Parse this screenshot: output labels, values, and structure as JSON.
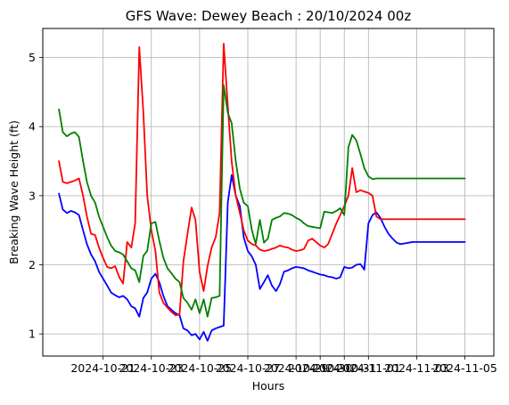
{
  "chart_data": {
    "type": "line",
    "title": "GFS Wave: Dewey Beach : 20/10/2024 00z",
    "xlabel": "Hours",
    "ylabel": "Breaking Wave Height (ft)",
    "grid": true,
    "xlim": [
      -1.5,
      17.2
    ],
    "ylim": [
      0.68,
      5.42
    ],
    "xticks": [
      {
        "x": 1,
        "label": "2024-10-21"
      },
      {
        "x": 3,
        "label": "2024-10-23"
      },
      {
        "x": 5,
        "label": "2024-10-25"
      },
      {
        "x": 7,
        "label": "2024-10-27"
      },
      {
        "x": 9,
        "label": "2024-10-29"
      },
      {
        "x": 10,
        "label": "2024-10-30"
      },
      {
        "x": 11,
        "label": "2024-10-31"
      },
      {
        "x": 12,
        "label": "2024-11-01"
      },
      {
        "x": 14,
        "label": "2024-11-03"
      },
      {
        "x": 16,
        "label": "2024-11-05"
      }
    ],
    "yticks": [
      1,
      2,
      3,
      4,
      5
    ],
    "series": [
      {
        "color": "#0000ff",
        "x": [
          -0.83,
          -0.67,
          -0.5,
          -0.33,
          -0.17,
          0.0,
          0.17,
          0.33,
          0.5,
          0.67,
          0.83,
          1.0,
          1.17,
          1.33,
          1.5,
          1.67,
          1.83,
          2.0,
          2.17,
          2.33,
          2.5,
          2.67,
          2.83,
          3.0,
          3.17,
          3.33,
          3.5,
          3.67,
          3.83,
          4.0,
          4.17,
          4.33,
          4.5,
          4.67,
          4.83,
          5.0,
          5.17,
          5.33,
          5.5,
          5.67,
          5.83,
          6.0,
          6.17,
          6.33,
          6.5,
          6.67,
          6.83,
          7.0,
          7.17,
          7.33,
          7.5,
          7.67,
          7.83,
          8.0,
          8.17,
          8.33,
          8.5,
          8.67,
          8.83,
          9.0,
          9.17,
          9.33,
          9.5,
          9.67,
          9.83,
          10.0,
          10.17,
          10.33,
          10.5,
          10.67,
          10.83,
          11.0,
          11.17,
          11.33,
          11.5,
          11.67,
          11.83,
          12.0,
          12.17,
          12.33,
          12.5,
          12.67,
          12.83,
          13.0,
          13.17,
          13.33,
          13.5,
          13.67,
          13.83,
          14.0,
          14.17,
          14.33,
          14.5,
          14.67,
          14.83,
          15.0,
          15.17,
          15.33,
          15.5,
          15.67,
          15.83,
          16.0
        ],
        "y": [
          3.03,
          2.8,
          2.75,
          2.78,
          2.76,
          2.72,
          2.5,
          2.3,
          2.15,
          2.05,
          1.9,
          1.8,
          1.7,
          1.6,
          1.56,
          1.53,
          1.55,
          1.5,
          1.4,
          1.37,
          1.25,
          1.52,
          1.6,
          1.8,
          1.87,
          1.75,
          1.55,
          1.4,
          1.35,
          1.3,
          1.27,
          1.08,
          1.05,
          0.98,
          1.0,
          0.92,
          1.03,
          0.9,
          1.05,
          1.08,
          1.1,
          1.12,
          2.9,
          3.3,
          3.0,
          2.85,
          2.4,
          2.2,
          2.12,
          2.0,
          1.65,
          1.75,
          1.85,
          1.7,
          1.62,
          1.72,
          1.9,
          1.92,
          1.95,
          1.97,
          1.96,
          1.95,
          1.92,
          1.9,
          1.88,
          1.86,
          1.85,
          1.83,
          1.82,
          1.8,
          1.82,
          1.97,
          1.95,
          1.96,
          2.0,
          2.01,
          1.93,
          2.6,
          2.72,
          2.76,
          2.68,
          2.55,
          2.45,
          2.38,
          2.32,
          2.3,
          2.31,
          2.32,
          2.33,
          2.33,
          2.33,
          2.33,
          2.33,
          2.33,
          2.33,
          2.33,
          2.33,
          2.33,
          2.33,
          2.33,
          2.33,
          2.33
        ]
      },
      {
        "color": "#ff0000",
        "x": [
          -0.83,
          -0.67,
          -0.5,
          -0.33,
          -0.17,
          0.0,
          0.17,
          0.33,
          0.5,
          0.67,
          0.83,
          1.0,
          1.17,
          1.33,
          1.5,
          1.67,
          1.83,
          2.0,
          2.17,
          2.33,
          2.5,
          2.67,
          2.83,
          3.0,
          3.17,
          3.33,
          3.5,
          3.67,
          3.83,
          4.0,
          4.17,
          4.33,
          4.5,
          4.67,
          4.83,
          5.0,
          5.17,
          5.33,
          5.5,
          5.67,
          5.83,
          6.0,
          6.17,
          6.33,
          6.5,
          6.67,
          6.83,
          7.0,
          7.17,
          7.33,
          7.5,
          7.67,
          7.83,
          8.0,
          8.17,
          8.33,
          8.5,
          8.67,
          8.83,
          9.0,
          9.17,
          9.33,
          9.5,
          9.67,
          9.83,
          10.0,
          10.17,
          10.33,
          10.5,
          10.67,
          10.83,
          11.0,
          11.17,
          11.33,
          11.5,
          11.67,
          11.83,
          12.0,
          12.17,
          12.33,
          12.5,
          12.67,
          12.83,
          13.0,
          13.17,
          13.33,
          13.5,
          13.67,
          13.83,
          14.0,
          14.17,
          14.33,
          14.5,
          14.67,
          14.83,
          15.0,
          15.17,
          15.33,
          15.5,
          15.67,
          15.83,
          16.0
        ],
        "y": [
          3.5,
          3.2,
          3.18,
          3.2,
          3.22,
          3.25,
          3.0,
          2.7,
          2.45,
          2.43,
          2.25,
          2.1,
          1.97,
          1.95,
          1.98,
          1.82,
          1.73,
          2.33,
          2.25,
          2.6,
          5.15,
          4.2,
          3.0,
          2.5,
          2.2,
          1.6,
          1.45,
          1.38,
          1.32,
          1.27,
          1.28,
          2.05,
          2.45,
          2.83,
          2.65,
          1.9,
          1.62,
          1.98,
          2.25,
          2.4,
          2.75,
          5.2,
          4.3,
          3.5,
          3.0,
          2.75,
          2.5,
          2.35,
          2.3,
          2.28,
          2.22,
          2.2,
          2.21,
          2.23,
          2.25,
          2.28,
          2.26,
          2.25,
          2.22,
          2.2,
          2.21,
          2.23,
          2.35,
          2.38,
          2.33,
          2.28,
          2.25,
          2.3,
          2.45,
          2.6,
          2.72,
          2.85,
          3.0,
          3.4,
          3.05,
          3.08,
          3.06,
          3.04,
          3.0,
          2.7,
          2.66,
          2.66,
          2.66,
          2.66,
          2.66,
          2.66,
          2.66,
          2.66,
          2.66,
          2.66,
          2.66,
          2.66,
          2.66,
          2.66,
          2.66,
          2.66,
          2.66,
          2.66,
          2.66,
          2.66,
          2.66,
          2.66
        ]
      },
      {
        "color": "#008000",
        "x": [
          -0.83,
          -0.67,
          -0.5,
          -0.33,
          -0.17,
          0.0,
          0.17,
          0.33,
          0.5,
          0.67,
          0.83,
          1.0,
          1.17,
          1.33,
          1.5,
          1.67,
          1.83,
          2.0,
          2.17,
          2.33,
          2.5,
          2.67,
          2.83,
          3.0,
          3.17,
          3.33,
          3.5,
          3.67,
          3.83,
          4.0,
          4.17,
          4.33,
          4.5,
          4.67,
          4.83,
          5.0,
          5.17,
          5.33,
          5.5,
          5.67,
          5.83,
          6.0,
          6.17,
          6.33,
          6.5,
          6.67,
          6.83,
          7.0,
          7.17,
          7.33,
          7.5,
          7.67,
          7.83,
          8.0,
          8.17,
          8.33,
          8.5,
          8.67,
          8.83,
          9.0,
          9.17,
          9.33,
          9.5,
          9.67,
          9.83,
          10.0,
          10.17,
          10.33,
          10.5,
          10.67,
          10.83,
          11.0,
          11.17,
          11.33,
          11.5,
          11.67,
          11.83,
          12.0,
          12.17,
          12.33,
          12.5,
          12.67,
          12.83,
          13.0,
          13.17,
          13.33,
          13.5,
          13.67,
          13.83,
          14.0,
          14.17,
          14.33,
          14.5,
          14.67,
          14.83,
          15.0,
          15.17,
          15.33,
          15.5,
          15.67,
          15.83,
          16.0
        ],
        "y": [
          4.25,
          3.92,
          3.86,
          3.9,
          3.92,
          3.85,
          3.5,
          3.2,
          3.0,
          2.9,
          2.7,
          2.55,
          2.4,
          2.28,
          2.2,
          2.18,
          2.15,
          2.05,
          1.95,
          1.92,
          1.75,
          2.13,
          2.2,
          2.6,
          2.62,
          2.35,
          2.1,
          1.95,
          1.88,
          1.8,
          1.75,
          1.52,
          1.45,
          1.35,
          1.5,
          1.3,
          1.5,
          1.25,
          1.52,
          1.53,
          1.55,
          4.6,
          4.2,
          4.05,
          3.5,
          3.1,
          2.9,
          2.85,
          2.5,
          2.3,
          2.65,
          2.32,
          2.38,
          2.65,
          2.68,
          2.7,
          2.75,
          2.74,
          2.72,
          2.68,
          2.65,
          2.6,
          2.56,
          2.55,
          2.54,
          2.53,
          2.77,
          2.76,
          2.75,
          2.78,
          2.82,
          2.72,
          3.7,
          3.88,
          3.8,
          3.6,
          3.4,
          3.28,
          3.24,
          3.25,
          3.25,
          3.25,
          3.25,
          3.25,
          3.25,
          3.25,
          3.25,
          3.25,
          3.25,
          3.25,
          3.25,
          3.25,
          3.25,
          3.25,
          3.25,
          3.25,
          3.25,
          3.25,
          3.25,
          3.25,
          3.25,
          3.25
        ]
      }
    ]
  }
}
